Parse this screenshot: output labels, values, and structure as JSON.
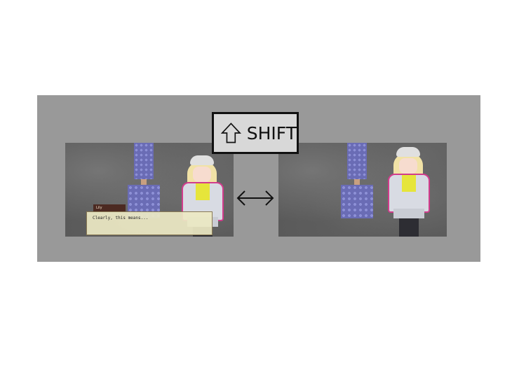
{
  "shift_key": {
    "label": "SHIFT",
    "icon": "shift-arrow-icon"
  },
  "comparison": {
    "arrow_icon": "double-arrow-icon"
  },
  "left_screenshot": {
    "dialog": {
      "speaker": "Lily",
      "text": "Clearly, this means..."
    }
  },
  "colors": {
    "panel_bg": "#999999",
    "pillar": "#6a6cb5",
    "jacket_trim": "#d23c8c",
    "dialog_bg": "#ece8c4",
    "name_tag": "#4c2a22"
  }
}
